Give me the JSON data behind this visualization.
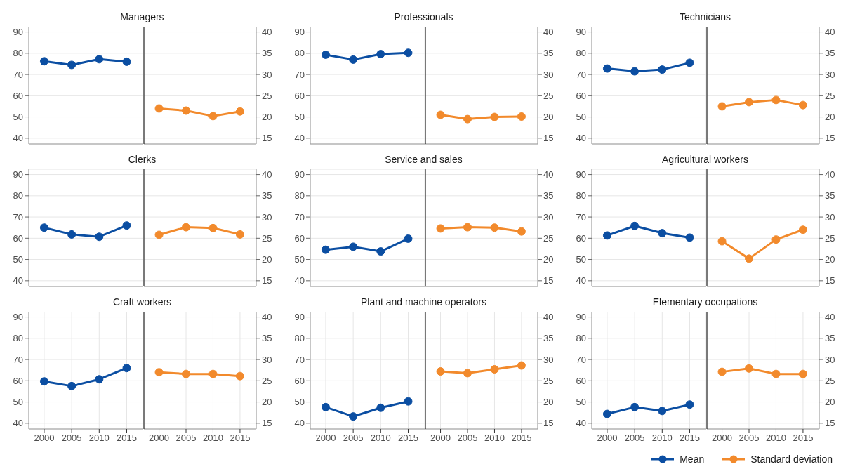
{
  "chart_data": [
    {
      "type": "line",
      "title": "Managers",
      "x": [
        2000,
        2005,
        2010,
        2015
      ],
      "xlim": [
        1997.2,
        2018
      ],
      "xticks": [
        2000,
        2005,
        2010,
        2015
      ],
      "ylim": [
        37.3,
        92.5
      ],
      "yticks": [
        40,
        50,
        60,
        70,
        80,
        90
      ],
      "grid": true,
      "marker": "circle",
      "line_style": "solid",
      "tick_labels": "y",
      "series": [
        {
          "color": "#0b4ea2",
          "values": [
            76.2,
            74.5,
            77.2,
            76.0
          ]
        }
      ]
    },
    {
      "type": "line",
      "x": [
        2000,
        2005,
        2010,
        2015
      ],
      "xlim": [
        1997.2,
        2018
      ],
      "xticks": [
        2000,
        2005,
        2010,
        2015
      ],
      "y2lim": [
        13.65,
        41.25
      ],
      "y2ticks": [
        15,
        20,
        25,
        30,
        35,
        40
      ],
      "grid": true,
      "marker": "circle",
      "line_style": "solid",
      "tick_labels": "y",
      "series": [
        {
          "color": "#f28a2c",
          "axis": "y2",
          "values": [
            22.0,
            21.5,
            20.2,
            21.3
          ]
        }
      ]
    },
    {
      "type": "line",
      "title": "Professionals",
      "x": [
        2000,
        2005,
        2010,
        2015
      ],
      "xlim": [
        1997.2,
        2018
      ],
      "xticks": [
        2000,
        2005,
        2010,
        2015
      ],
      "ylim": [
        37.3,
        92.5
      ],
      "yticks": [
        40,
        50,
        60,
        70,
        80,
        90
      ],
      "grid": true,
      "marker": "circle",
      "line_style": "solid",
      "tick_labels": "y",
      "series": [
        {
          "color": "#0b4ea2",
          "values": [
            79.3,
            77.0,
            79.6,
            80.2
          ]
        }
      ]
    },
    {
      "type": "line",
      "x": [
        2000,
        2005,
        2010,
        2015
      ],
      "xlim": [
        1997.2,
        2018
      ],
      "xticks": [
        2000,
        2005,
        2010,
        2015
      ],
      "y2lim": [
        13.65,
        41.25
      ],
      "y2ticks": [
        15,
        20,
        25,
        30,
        35,
        40
      ],
      "grid": true,
      "marker": "circle",
      "line_style": "solid",
      "tick_labels": "y",
      "series": [
        {
          "color": "#f28a2c",
          "axis": "y2",
          "values": [
            20.5,
            19.5,
            20.0,
            20.1
          ]
        }
      ]
    },
    {
      "type": "line",
      "title": "Technicians",
      "x": [
        2000,
        2005,
        2010,
        2015
      ],
      "xlim": [
        1997.2,
        2018
      ],
      "xticks": [
        2000,
        2005,
        2010,
        2015
      ],
      "ylim": [
        37.3,
        92.5
      ],
      "yticks": [
        40,
        50,
        60,
        70,
        80,
        90
      ],
      "grid": true,
      "marker": "circle",
      "line_style": "solid",
      "tick_labels": "y",
      "series": [
        {
          "color": "#0b4ea2",
          "values": [
            72.8,
            71.5,
            72.3,
            75.5
          ]
        }
      ]
    },
    {
      "type": "line",
      "x": [
        2000,
        2005,
        2010,
        2015
      ],
      "xlim": [
        1997.2,
        2018
      ],
      "xticks": [
        2000,
        2005,
        2010,
        2015
      ],
      "y2lim": [
        13.65,
        41.25
      ],
      "y2ticks": [
        15,
        20,
        25,
        30,
        35,
        40
      ],
      "grid": true,
      "marker": "circle",
      "line_style": "solid",
      "tick_labels": "y",
      "series": [
        {
          "color": "#f28a2c",
          "axis": "y2",
          "values": [
            22.5,
            23.5,
            24.0,
            22.8
          ]
        }
      ]
    },
    {
      "type": "line",
      "title": "Clerks",
      "x": [
        2000,
        2005,
        2010,
        2015
      ],
      "xlim": [
        1997.2,
        2018
      ],
      "xticks": [
        2000,
        2005,
        2010,
        2015
      ],
      "ylim": [
        37.3,
        92.5
      ],
      "yticks": [
        40,
        50,
        60,
        70,
        80,
        90
      ],
      "grid": true,
      "marker": "circle",
      "line_style": "solid",
      "tick_labels": "y",
      "series": [
        {
          "color": "#0b4ea2",
          "values": [
            65.0,
            61.8,
            60.7,
            66.0
          ]
        }
      ]
    },
    {
      "type": "line",
      "x": [
        2000,
        2005,
        2010,
        2015
      ],
      "xlim": [
        1997.2,
        2018
      ],
      "xticks": [
        2000,
        2005,
        2010,
        2015
      ],
      "y2lim": [
        13.65,
        41.25
      ],
      "y2ticks": [
        15,
        20,
        25,
        30,
        35,
        40
      ],
      "grid": true,
      "marker": "circle",
      "line_style": "solid",
      "tick_labels": "y",
      "series": [
        {
          "color": "#f28a2c",
          "axis": "y2",
          "values": [
            25.8,
            27.6,
            27.4,
            25.9
          ]
        }
      ]
    },
    {
      "type": "line",
      "title": "Service and sales",
      "x": [
        2000,
        2005,
        2010,
        2015
      ],
      "xlim": [
        1997.2,
        2018
      ],
      "xticks": [
        2000,
        2005,
        2010,
        2015
      ],
      "ylim": [
        37.3,
        92.5
      ],
      "yticks": [
        40,
        50,
        60,
        70,
        80,
        90
      ],
      "grid": true,
      "marker": "circle",
      "line_style": "solid",
      "tick_labels": "y",
      "series": [
        {
          "color": "#0b4ea2",
          "values": [
            54.6,
            56.0,
            53.8,
            59.8
          ]
        }
      ]
    },
    {
      "type": "line",
      "x": [
        2000,
        2005,
        2010,
        2015
      ],
      "xlim": [
        1997.2,
        2018
      ],
      "xticks": [
        2000,
        2005,
        2010,
        2015
      ],
      "y2lim": [
        13.65,
        41.25
      ],
      "y2ticks": [
        15,
        20,
        25,
        30,
        35,
        40
      ],
      "grid": true,
      "marker": "circle",
      "line_style": "solid",
      "tick_labels": "y",
      "series": [
        {
          "color": "#f28a2c",
          "axis": "y2",
          "values": [
            27.3,
            27.6,
            27.5,
            26.6
          ]
        }
      ]
    },
    {
      "type": "line",
      "title": "Agricultural workers",
      "x": [
        2000,
        2005,
        2010,
        2015
      ],
      "xlim": [
        1997.2,
        2018
      ],
      "xticks": [
        2000,
        2005,
        2010,
        2015
      ],
      "ylim": [
        37.3,
        92.5
      ],
      "yticks": [
        40,
        50,
        60,
        70,
        80,
        90
      ],
      "grid": true,
      "marker": "circle",
      "line_style": "solid",
      "tick_labels": "y",
      "series": [
        {
          "color": "#0b4ea2",
          "values": [
            61.3,
            65.8,
            62.4,
            60.3
          ]
        }
      ]
    },
    {
      "type": "line",
      "x": [
        2000,
        2005,
        2010,
        2015
      ],
      "xlim": [
        1997.2,
        2018
      ],
      "xticks": [
        2000,
        2005,
        2010,
        2015
      ],
      "y2lim": [
        13.65,
        41.25
      ],
      "y2ticks": [
        15,
        20,
        25,
        30,
        35,
        40
      ],
      "grid": true,
      "marker": "circle",
      "line_style": "solid",
      "tick_labels": "y",
      "series": [
        {
          "color": "#f28a2c",
          "axis": "y2",
          "values": [
            24.3,
            20.2,
            24.7,
            27.0
          ]
        }
      ]
    },
    {
      "type": "line",
      "title": "Craft workers",
      "x": [
        2000,
        2005,
        2010,
        2015
      ],
      "xlim": [
        1997.2,
        2018
      ],
      "xticks": [
        2000,
        2005,
        2010,
        2015
      ],
      "ylim": [
        37.3,
        92.5
      ],
      "yticks": [
        40,
        50,
        60,
        70,
        80,
        90
      ],
      "grid": true,
      "marker": "circle",
      "line_style": "solid",
      "series": [
        {
          "color": "#0b4ea2",
          "values": [
            59.7,
            57.5,
            60.7,
            66.0
          ]
        }
      ]
    },
    {
      "type": "line",
      "x": [
        2000,
        2005,
        2010,
        2015
      ],
      "xlim": [
        1997.2,
        2018
      ],
      "xticks": [
        2000,
        2005,
        2010,
        2015
      ],
      "y2lim": [
        13.65,
        41.25
      ],
      "y2ticks": [
        15,
        20,
        25,
        30,
        35,
        40
      ],
      "grid": true,
      "marker": "circle",
      "line_style": "solid",
      "series": [
        {
          "color": "#f28a2c",
          "axis": "y2",
          "values": [
            27.0,
            26.6,
            26.6,
            26.1
          ]
        }
      ]
    },
    {
      "type": "line",
      "title": "Plant and machine operators",
      "x": [
        2000,
        2005,
        2010,
        2015
      ],
      "xlim": [
        1997.2,
        2018
      ],
      "xticks": [
        2000,
        2005,
        2010,
        2015
      ],
      "ylim": [
        37.3,
        92.5
      ],
      "yticks": [
        40,
        50,
        60,
        70,
        80,
        90
      ],
      "grid": true,
      "marker": "circle",
      "line_style": "solid",
      "series": [
        {
          "color": "#0b4ea2",
          "values": [
            47.6,
            43.2,
            47.3,
            50.3
          ]
        }
      ]
    },
    {
      "type": "line",
      "x": [
        2000,
        2005,
        2010,
        2015
      ],
      "xlim": [
        1997.2,
        2018
      ],
      "xticks": [
        2000,
        2005,
        2010,
        2015
      ],
      "y2lim": [
        13.65,
        41.25
      ],
      "y2ticks": [
        15,
        20,
        25,
        30,
        35,
        40
      ],
      "grid": true,
      "marker": "circle",
      "line_style": "solid",
      "series": [
        {
          "color": "#f28a2c",
          "axis": "y2",
          "values": [
            27.2,
            26.8,
            27.7,
            28.6
          ]
        }
      ]
    },
    {
      "type": "line",
      "title": "Elementary occupations",
      "x": [
        2000,
        2005,
        2010,
        2015
      ],
      "xlim": [
        1997.2,
        2018
      ],
      "xticks": [
        2000,
        2005,
        2010,
        2015
      ],
      "ylim": [
        37.3,
        92.5
      ],
      "yticks": [
        40,
        50,
        60,
        70,
        80,
        90
      ],
      "grid": true,
      "marker": "circle",
      "line_style": "solid",
      "legend": "bottom",
      "series": [
        {
          "name": "Mean",
          "color": "#0b4ea2",
          "values": [
            44.4,
            47.6,
            45.8,
            48.8
          ]
        }
      ]
    },
    {
      "type": "line",
      "x": [
        2000,
        2005,
        2010,
        2015
      ],
      "xlim": [
        1997.2,
        2018
      ],
      "xticks": [
        2000,
        2005,
        2010,
        2015
      ],
      "y2lim": [
        13.65,
        41.25
      ],
      "y2ticks": [
        15,
        20,
        25,
        30,
        35,
        40
      ],
      "grid": true,
      "marker": "circle",
      "line_style": "solid",
      "legend": "bottom",
      "series": [
        {
          "name": "Standard deviation",
          "color": "#f28a2c",
          "axis": "y2",
          "values": [
            27.1,
            27.9,
            26.6,
            26.6
          ]
        }
      ]
    }
  ]
}
